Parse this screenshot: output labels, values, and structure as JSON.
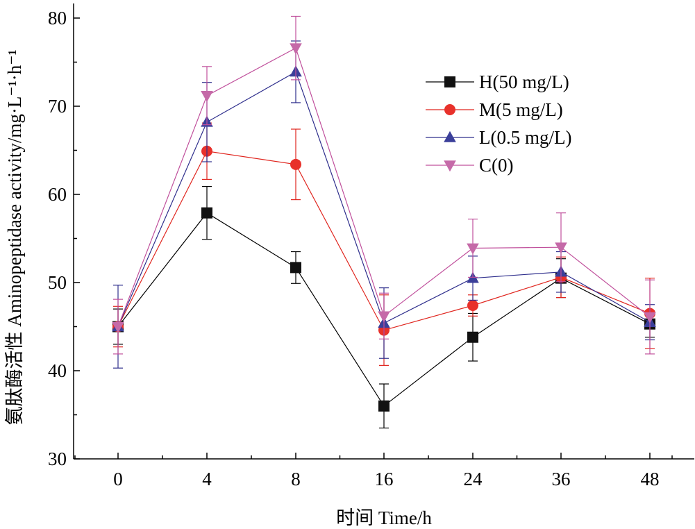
{
  "chart_data": {
    "type": "line",
    "xlabel": "时间 Time/h",
    "ylabel": "氨肽酶活性 Aminopeptidase activity/mg·L⁻¹·h⁻¹",
    "categories": [
      "0",
      "4",
      "8",
      "16",
      "24",
      "36",
      "48"
    ],
    "ylim": [
      30,
      80
    ],
    "yticks": [
      "30",
      "40",
      "50",
      "60",
      "70",
      "80"
    ],
    "grid": false,
    "legend_position": "top-right",
    "series": [
      {
        "name": "H(50 mg/L)",
        "marker": "square",
        "color": "#000000",
        "markerColor": "#111111",
        "values": [
          45.0,
          57.9,
          51.7,
          36.0,
          43.8,
          50.5,
          45.3
        ],
        "errors": [
          2.0,
          3.0,
          1.8,
          2.5,
          2.7,
          2.2,
          1.5
        ]
      },
      {
        "name": "M(5 mg/L)",
        "marker": "circle",
        "color": "#e0261f",
        "markerColor": "#e8312b",
        "values": [
          45.0,
          64.9,
          63.4,
          44.6,
          47.4,
          50.6,
          46.5
        ],
        "errors": [
          2.3,
          3.2,
          4.0,
          4.0,
          1.2,
          2.3,
          4.0
        ]
      },
      {
        "name": "L(0.5 mg/L)",
        "marker": "triangle-up",
        "color": "#2e2e8c",
        "markerColor": "#3b3f9a",
        "values": [
          45.0,
          68.2,
          73.9,
          45.4,
          50.5,
          51.2,
          45.5
        ],
        "errors": [
          4.7,
          4.5,
          3.5,
          4.0,
          2.5,
          2.3,
          2.0
        ]
      },
      {
        "name": "C(0)",
        "marker": "triangle-down",
        "color": "#c0509c",
        "markerColor": "#c56aa8",
        "values": [
          45.0,
          71.2,
          76.6,
          46.2,
          53.9,
          54.0,
          46.1
        ],
        "errors": [
          3.1,
          3.3,
          3.6,
          2.6,
          3.3,
          3.9,
          4.2
        ]
      }
    ]
  }
}
